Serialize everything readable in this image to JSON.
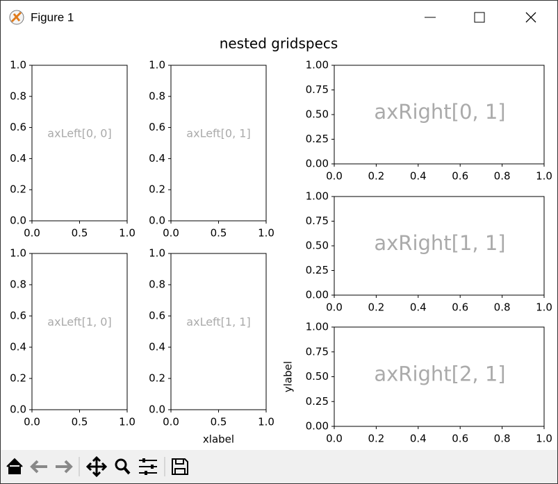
{
  "window": {
    "title": "Figure 1"
  },
  "suptitle": "nested gridspecs",
  "chart_data": [
    {
      "type": "empty",
      "annotation": "axLeft[0, 0]",
      "annotation_size": "small",
      "xlim": [
        0,
        1
      ],
      "ylim": [
        0,
        1
      ],
      "xticks": [
        {
          "value": 0,
          "label": "0.0"
        },
        0.5,
        {
          "value": 1,
          "label": "1.0"
        }
      ],
      "yticks": [
        {
          "value": 0,
          "label": "0.0"
        },
        0.2,
        0.4,
        0.6,
        0.8,
        {
          "value": 1,
          "label": "1.0"
        }
      ]
    },
    {
      "type": "empty",
      "annotation": "axLeft[0, 1]",
      "annotation_size": "small",
      "xlim": [
        0,
        1
      ],
      "ylim": [
        0,
        1
      ],
      "xticks": [
        {
          "value": 0,
          "label": "0.0"
        },
        0.5,
        {
          "value": 1,
          "label": "1.0"
        }
      ],
      "yticks": [
        {
          "value": 0,
          "label": "0.0"
        },
        0.2,
        0.4,
        0.6,
        0.8,
        {
          "value": 1,
          "label": "1.0"
        }
      ]
    },
    {
      "type": "empty",
      "annotation": "axLeft[1, 0]",
      "annotation_size": "small",
      "xlim": [
        0,
        1
      ],
      "ylim": [
        0,
        1
      ],
      "xticks": [
        {
          "value": 0,
          "label": "0.0"
        },
        0.5,
        {
          "value": 1,
          "label": "1.0"
        }
      ],
      "yticks": [
        {
          "value": 0,
          "label": "0.0"
        },
        0.2,
        0.4,
        0.6,
        0.8,
        {
          "value": 1,
          "label": "1.0"
        }
      ]
    },
    {
      "type": "empty",
      "annotation": "axLeft[1, 1]",
      "annotation_size": "small",
      "xlabel": "xlabel",
      "xlim": [
        0,
        1
      ],
      "ylim": [
        0,
        1
      ],
      "xticks": [
        {
          "value": 0,
          "label": "0.0"
        },
        0.5,
        {
          "value": 1,
          "label": "1.0"
        }
      ],
      "yticks": [
        {
          "value": 0,
          "label": "0.0"
        },
        0.2,
        0.4,
        0.6,
        0.8,
        {
          "value": 1,
          "label": "1.0"
        }
      ]
    },
    {
      "type": "empty",
      "annotation": "axRight[0, 1]",
      "annotation_size": "large",
      "xlim": [
        0,
        1
      ],
      "ylim": [
        0,
        1
      ],
      "xticks": [
        {
          "value": 0,
          "label": "0.0"
        },
        0.2,
        0.4,
        0.6,
        0.8,
        {
          "value": 1,
          "label": "1.0"
        }
      ],
      "yticks": [
        {
          "value": 0,
          "label": "0.00"
        },
        0.25,
        {
          "value": 0.5,
          "label": "0.50"
        },
        0.75,
        {
          "value": 1,
          "label": "1.00"
        }
      ]
    },
    {
      "type": "empty",
      "annotation": "axRight[1, 1]",
      "annotation_size": "large",
      "xlim": [
        0,
        1
      ],
      "ylim": [
        0,
        1
      ],
      "xticks": [
        {
          "value": 0,
          "label": "0.0"
        },
        0.2,
        0.4,
        0.6,
        0.8,
        {
          "value": 1,
          "label": "1.0"
        }
      ],
      "yticks": [
        {
          "value": 0,
          "label": "0.00"
        },
        0.25,
        {
          "value": 0.5,
          "label": "0.50"
        },
        0.75,
        {
          "value": 1,
          "label": "1.00"
        }
      ]
    },
    {
      "type": "empty",
      "annotation": "axRight[2, 1]",
      "annotation_size": "large",
      "ylabel": "ylabel",
      "xlim": [
        0,
        1
      ],
      "ylim": [
        0,
        1
      ],
      "xticks": [
        {
          "value": 0,
          "label": "0.0"
        },
        0.2,
        0.4,
        0.6,
        0.8,
        {
          "value": 1,
          "label": "1.0"
        }
      ],
      "yticks": [
        {
          "value": 0,
          "label": "0.00"
        },
        0.25,
        {
          "value": 0.5,
          "label": "0.50"
        },
        0.75,
        {
          "value": 1,
          "label": "1.00"
        }
      ]
    }
  ]
}
